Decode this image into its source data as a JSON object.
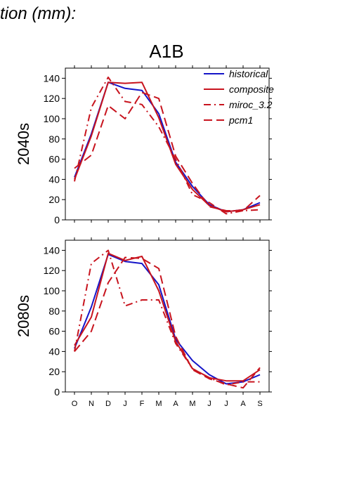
{
  "figure": {
    "heading": "tion (mm):",
    "title": "A1B"
  },
  "colors": {
    "historical": "#1515c8",
    "models": "#c8141e",
    "axis": "#000000"
  },
  "chart_data": [
    {
      "type": "line",
      "row_label": "2040s",
      "x": [
        "O",
        "N",
        "D",
        "J",
        "F",
        "M",
        "A",
        "M",
        "J",
        "J",
        "A",
        "S"
      ],
      "ylim": [
        0,
        150
      ],
      "yticks": [
        0,
        20,
        40,
        60,
        80,
        100,
        120,
        140
      ],
      "legend": "top-right",
      "series": [
        {
          "name": "historical",
          "style": "solid",
          "color": "#1515c8",
          "values": [
            42,
            85,
            136,
            130,
            128,
            105,
            57,
            33,
            15,
            8,
            10,
            17
          ]
        },
        {
          "name": "composite",
          "style": "solid",
          "color": "#c8141e",
          "values": [
            40,
            83,
            136,
            135,
            136,
            101,
            55,
            30,
            14,
            8,
            10,
            15
          ]
        },
        {
          "name": "miroc_3.2",
          "style": "dashdot",
          "color": "#c8141e",
          "values": [
            38,
            111,
            141,
            117,
            114,
            92,
            60,
            25,
            17,
            6,
            9,
            10
          ]
        },
        {
          "name": "pcm1",
          "style": "longdash",
          "color": "#c8141e",
          "values": [
            51,
            64,
            113,
            100,
            126,
            120,
            63,
            36,
            13,
            9,
            9,
            24
          ]
        }
      ]
    },
    {
      "type": "line",
      "row_label": "2080s",
      "x": [
        "O",
        "N",
        "D",
        "J",
        "F",
        "M",
        "A",
        "M",
        "J",
        "J",
        "A",
        "S"
      ],
      "ylim": [
        0,
        150
      ],
      "yticks": [
        0,
        20,
        40,
        60,
        80,
        100,
        120,
        140
      ],
      "xticks": [
        "O",
        "N",
        "D",
        "J",
        "F",
        "M",
        "A",
        "M",
        "J",
        "J",
        "A",
        "S"
      ],
      "series": [
        {
          "name": "historical",
          "style": "solid",
          "color": "#1515c8",
          "values": [
            43,
            84,
            136,
            129,
            127,
            106,
            52,
            31,
            17,
            8,
            10,
            17
          ]
        },
        {
          "name": "composite",
          "style": "solid",
          "color": "#c8141e",
          "values": [
            46,
            74,
            137,
            130,
            134,
            100,
            50,
            23,
            14,
            11,
            11,
            22
          ]
        },
        {
          "name": "miroc_3.2",
          "style": "dashdot",
          "color": "#c8141e",
          "values": [
            40,
            127,
            140,
            85,
            91,
            91,
            48,
            23,
            14,
            7,
            10,
            10
          ]
        },
        {
          "name": "pcm1",
          "style": "longdash",
          "color": "#c8141e",
          "values": [
            40,
            60,
            108,
            133,
            132,
            122,
            55,
            22,
            13,
            8,
            4,
            24
          ]
        }
      ]
    }
  ]
}
